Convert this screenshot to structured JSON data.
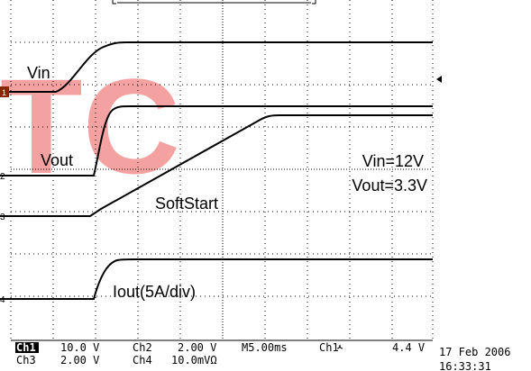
{
  "watermark": "TC",
  "markers": [
    "1",
    "2",
    "3",
    "4"
  ],
  "labels": {
    "vin": "Vin",
    "vout": "Vout",
    "softstart": "SoftStart",
    "iout": "Iout(5A/div)",
    "vin_value": "Vin=12V",
    "vout_value": "Vout=3.3V"
  },
  "status": {
    "row1": [
      "Ch1",
      "10.0 V",
      "Ch2",
      "2.00 V",
      "M5.00ms",
      "Ch1",
      "4.4 V"
    ],
    "row2": [
      "Ch3",
      "2.00 V",
      "Ch4",
      "10.0mVΩ"
    ],
    "date": "17 Feb 2006",
    "time": "16:33:31"
  }
}
